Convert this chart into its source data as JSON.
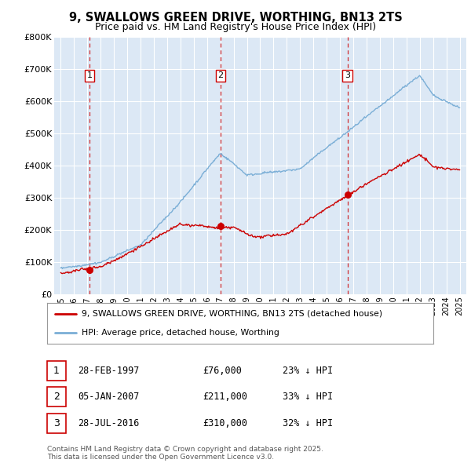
{
  "title": "9, SWALLOWS GREEN DRIVE, WORTHING, BN13 2TS",
  "subtitle": "Price paid vs. HM Land Registry's House Price Index (HPI)",
  "ylim": [
    0,
    800000
  ],
  "yticks": [
    0,
    100000,
    200000,
    300000,
    400000,
    500000,
    600000,
    700000,
    800000
  ],
  "ytick_labels": [
    "£0",
    "£100K",
    "£200K",
    "£300K",
    "£400K",
    "£500K",
    "£600K",
    "£700K",
    "£800K"
  ],
  "xlim_start": 1994.5,
  "xlim_end": 2025.5,
  "bg_color": "#dce8f5",
  "line_color_red": "#cc0000",
  "line_color_blue": "#7aaed6",
  "grid_color": "#ffffff",
  "transactions": [
    {
      "year": 1997.15,
      "price": 76000,
      "label": "1",
      "date": "28-FEB-1997",
      "amount": "£76,000",
      "hpi_pct": "23% ↓ HPI"
    },
    {
      "year": 2007.02,
      "price": 211000,
      "label": "2",
      "date": "05-JAN-2007",
      "amount": "£211,000",
      "hpi_pct": "33% ↓ HPI"
    },
    {
      "year": 2016.57,
      "price": 310000,
      "label": "3",
      "date": "28-JUL-2016",
      "amount": "£310,000",
      "hpi_pct": "32% ↓ HPI"
    }
  ],
  "legend_label_red": "9, SWALLOWS GREEN DRIVE, WORTHING, BN13 2TS (detached house)",
  "legend_label_blue": "HPI: Average price, detached house, Worthing",
  "footnote": "Contains HM Land Registry data © Crown copyright and database right 2025.\nThis data is licensed under the Open Government Licence v3.0.",
  "title_fontsize": 10.5,
  "subtitle_fontsize": 9
}
